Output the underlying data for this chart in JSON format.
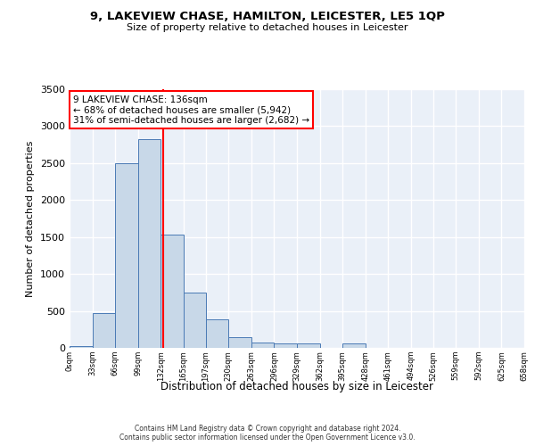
{
  "title1": "9, LAKEVIEW CHASE, HAMILTON, LEICESTER, LE5 1QP",
  "title2": "Size of property relative to detached houses in Leicester",
  "xlabel": "Distribution of detached houses by size in Leicester",
  "ylabel": "Number of detached properties",
  "bin_edges": [
    0,
    33,
    66,
    99,
    132,
    165,
    197,
    230,
    263,
    296,
    329,
    362,
    395,
    428,
    461,
    494,
    526,
    559,
    592,
    625,
    658
  ],
  "bar_heights": [
    30,
    470,
    2500,
    2820,
    1530,
    750,
    390,
    140,
    75,
    55,
    55,
    0,
    55,
    0,
    0,
    0,
    0,
    0,
    0,
    0
  ],
  "bar_color": "#c8d8e8",
  "bar_edge_color": "#4a7ab5",
  "vline_x": 136,
  "vline_color": "red",
  "annotation_text": "9 LAKEVIEW CHASE: 136sqm\n← 68% of detached houses are smaller (5,942)\n31% of semi-detached houses are larger (2,682) →",
  "annotation_box_color": "white",
  "annotation_box_edge": "red",
  "ylim": [
    0,
    3500
  ],
  "xlim": [
    0,
    658
  ],
  "yticks": [
    0,
    500,
    1000,
    1500,
    2000,
    2500,
    3000,
    3500
  ],
  "xtick_labels": [
    "0sqm",
    "33sqm",
    "66sqm",
    "99sqm",
    "132sqm",
    "165sqm",
    "197sqm",
    "230sqm",
    "263sqm",
    "296sqm",
    "329sqm",
    "362sqm",
    "395sqm",
    "428sqm",
    "461sqm",
    "494sqm",
    "526sqm",
    "559sqm",
    "592sqm",
    "625sqm",
    "658sqm"
  ],
  "background_color": "#eaf0f8",
  "grid_color": "white",
  "footer1": "Contains HM Land Registry data © Crown copyright and database right 2024.",
  "footer2": "Contains public sector information licensed under the Open Government Licence v3.0."
}
